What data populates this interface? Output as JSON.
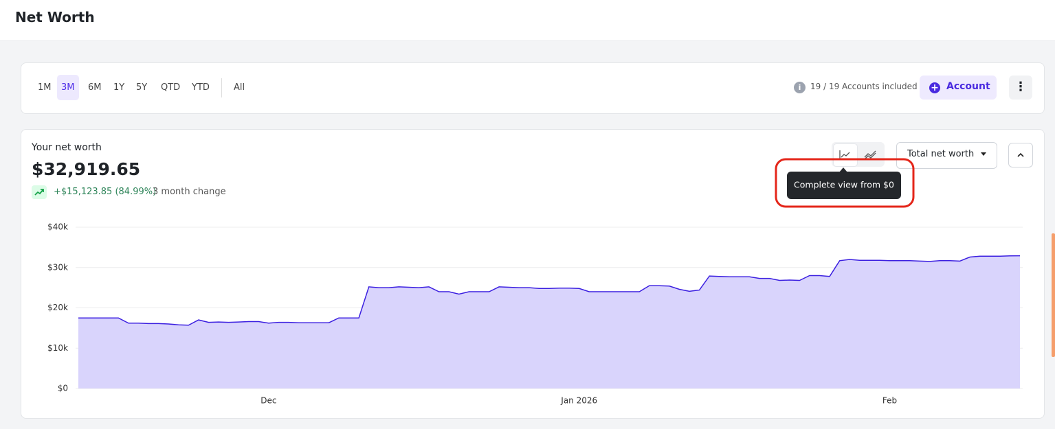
{
  "header": {
    "title": "Net Worth"
  },
  "toolbar": {
    "ranges": [
      "1M",
      "3M",
      "6M",
      "1Y",
      "5Y",
      "QTD",
      "YTD",
      "All"
    ],
    "accounts_info": "19 / 19 Accounts included",
    "add_account": "Account"
  },
  "summary": {
    "label": "Your net worth",
    "amount": "$32,919.65",
    "change": "+$15,123.85 (84.99%)",
    "change_label": "3 month change",
    "dropdown": "Total net worth",
    "tooltip": "Complete view from $0"
  },
  "chart_data": {
    "type": "area",
    "color": "#3b1fe0",
    "fill": "#d9d4fc",
    "grid": true,
    "categories": [
      null,
      null,
      null,
      null,
      null,
      null,
      null,
      null,
      null,
      null,
      null,
      null,
      null,
      null,
      null,
      null,
      null,
      null,
      null,
      "Dec",
      null,
      null,
      null,
      null,
      null,
      null,
      null,
      null,
      null,
      null,
      null,
      null,
      null,
      null,
      null,
      null,
      null,
      null,
      null,
      null,
      null,
      null,
      null,
      null,
      null,
      null,
      null,
      null,
      null,
      null,
      "Jan 2026",
      null,
      null,
      null,
      null,
      null,
      null,
      null,
      null,
      null,
      null,
      null,
      null,
      null,
      null,
      null,
      null,
      null,
      null,
      null,
      null,
      null,
      null,
      null,
      null,
      null,
      null,
      null,
      null,
      null,
      null,
      "Feb",
      null,
      null,
      null,
      null,
      null,
      null,
      null,
      null,
      null,
      null,
      null,
      null,
      null
    ],
    "values": [
      17500,
      17500,
      17500,
      17500,
      17500,
      16200,
      16200,
      16100,
      16100,
      16000,
      15800,
      15700,
      17000,
      16400,
      16500,
      16400,
      16500,
      16600,
      16600,
      16200,
      16400,
      16400,
      16300,
      16300,
      16300,
      16300,
      17500,
      17500,
      17500,
      25200,
      25000,
      25000,
      25200,
      25100,
      25000,
      25200,
      24000,
      24000,
      23400,
      24000,
      24000,
      24000,
      25200,
      25100,
      25000,
      25000,
      24800,
      24800,
      24900,
      24900,
      24800,
      24000,
      24000,
      24000,
      24000,
      24000,
      24000,
      25500,
      25500,
      25400,
      24600,
      24100,
      24400,
      27900,
      27800,
      27700,
      27700,
      27700,
      27300,
      27300,
      26800,
      26900,
      26800,
      28000,
      28000,
      27800,
      31700,
      32000,
      31800,
      31800,
      31800,
      31700,
      31700,
      31700,
      31600,
      31500,
      31700,
      31700,
      31600,
      32600,
      32800,
      32800,
      32800,
      32900,
      32919.65
    ],
    "ylim": [
      0,
      40000
    ],
    "yticks": [
      {
        "value": 0,
        "label": "$0"
      },
      {
        "value": 10000,
        "label": "$10k"
      },
      {
        "value": 20000,
        "label": "$20k"
      },
      {
        "value": 30000,
        "label": "$30k"
      },
      {
        "value": 40000,
        "label": "$40k"
      }
    ]
  }
}
